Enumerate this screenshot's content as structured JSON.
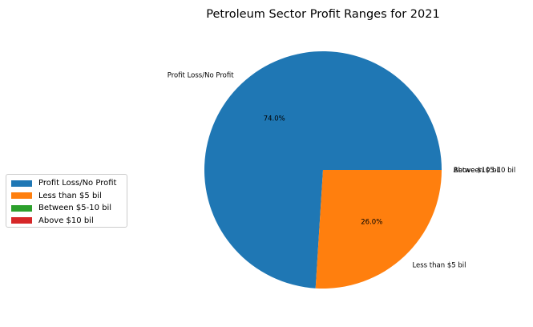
{
  "chart_data": {
    "type": "pie",
    "title": "Petroleum Sector Profit Ranges for 2021",
    "categories": [
      "Profit Loss/No Profit",
      "Less than $5 bil",
      "Between $5-10 bil",
      "Above $10 bil"
    ],
    "values": [
      74.0,
      26.0,
      0.0,
      0.0
    ],
    "pct_labels": [
      "74.0%",
      "26.0%",
      "",
      ""
    ],
    "colors": [
      "#1f77b4",
      "#ff7f0e",
      "#2ca02c",
      "#d62728"
    ],
    "legend": {
      "placement": "center-left"
    }
  }
}
